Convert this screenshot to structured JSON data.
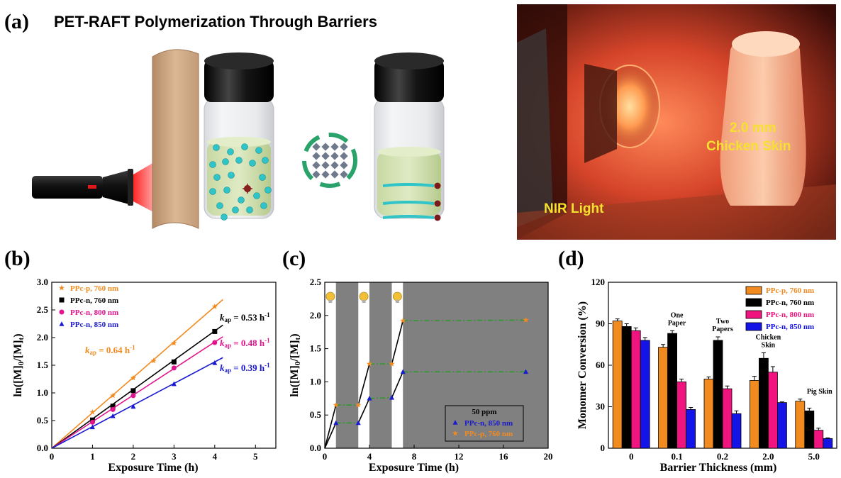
{
  "panel_a": {
    "letter": "(a)",
    "title": "PET-RAFT Polymerization Through Barriers",
    "photo_labels": {
      "thickness": "2.0 mm",
      "barrier": "Chicken Skin",
      "light": "NIR Light"
    },
    "colors": {
      "laser": "#e01818",
      "barrier": "#c9a27e",
      "solution": "#b7cf8a",
      "monomer": "#2ec4c8",
      "cage": "#6e7a8c",
      "arrow": "#2aa36a",
      "photo_glow": "#ff6a3c"
    }
  },
  "panel_b": {
    "letter": "(b)",
    "legend": [
      {
        "label": "PPc-p, 760 nm",
        "color": "#f28b1f",
        "marker": "star"
      },
      {
        "label": "PPc-n, 760 nm",
        "color": "#000000",
        "marker": "square"
      },
      {
        "label": "PPc-n, 800 nm",
        "color": "#e0148c",
        "marker": "circle"
      },
      {
        "label": "PPc-n, 850 nm",
        "color": "#1a1ad0",
        "marker": "triangle"
      }
    ],
    "annotations": {
      "k_symbol": "k",
      "k_sub": "ap",
      "k_unit_base": " h",
      "k_unit_exp": "-1",
      "values": [
        {
          "value": "0.64",
          "color": "#f28b1f"
        },
        {
          "value": "0.53",
          "color": "#000000"
        },
        {
          "value": "0.48",
          "color": "#e0148c"
        },
        {
          "value": "0.39",
          "color": "#1a1ad0"
        }
      ]
    }
  },
  "panel_c": {
    "letter": "(c)",
    "legend_title": "50 ppm",
    "legend": [
      {
        "label": "PPc-n, 850 nm",
        "color": "#1a1ad0",
        "marker": "triangle"
      },
      {
        "label": "PPc-p, 760 nm",
        "color": "#f28b1f",
        "marker": "star"
      }
    ],
    "colors": {
      "dark_band": "#808080",
      "plateau_line": "#2e9a2e",
      "bulb": "#f2c037"
    }
  },
  "panel_d": {
    "letter": "(d)",
    "legend": [
      {
        "label": "PPc-p, 760 nm",
        "color": "#f28b1f"
      },
      {
        "label": "PPc-n, 760 nm",
        "color": "#000000"
      },
      {
        "label": "PPc-n, 800 nm",
        "color": "#f0147e"
      },
      {
        "label": "PPc-n, 850 nm",
        "color": "#1414e6"
      }
    ],
    "group_labels": [
      {
        "lines": []
      },
      {
        "lines": [
          "One",
          "Paper"
        ]
      },
      {
        "lines": [
          "Two",
          "Papers"
        ]
      },
      {
        "lines": [
          "Chicken",
          "Skin"
        ]
      },
      {
        "lines": [
          "Pig Skin"
        ]
      }
    ]
  },
  "chart_data": [
    {
      "type": "scatter",
      "panel": "b",
      "xlabel": "Exposure Time (h)",
      "ylabel": "ln([M]0/[M]t)",
      "xlim": [
        0,
        5.5
      ],
      "ylim": [
        0,
        3.0
      ],
      "xticks": [
        "0",
        "1",
        "2",
        "3",
        "4",
        "5"
      ],
      "yticks": [
        "0.0",
        "0.5",
        "1.0",
        "1.5",
        "2.0",
        "2.5",
        "3.0"
      ],
      "series": [
        {
          "name": "PPc-p, 760 nm",
          "kap": 0.64,
          "fit_end_x": 4.2,
          "x": [
            0,
            1,
            1.5,
            2,
            2.5,
            3,
            4
          ],
          "y": [
            0,
            0.65,
            0.95,
            1.27,
            1.58,
            1.9,
            2.56
          ]
        },
        {
          "name": "PPc-n, 760 nm",
          "kap": 0.53,
          "fit_end_x": 4.2,
          "x": [
            0,
            1,
            1.5,
            2,
            3,
            4
          ],
          "y": [
            0,
            0.51,
            0.76,
            1.04,
            1.56,
            2.11
          ]
        },
        {
          "name": "PPc-n, 800 nm",
          "kap": 0.48,
          "fit_end_x": 4.2,
          "x": [
            0,
            1,
            1.5,
            2,
            3,
            4
          ],
          "y": [
            0,
            0.47,
            0.7,
            0.95,
            1.45,
            1.91
          ]
        },
        {
          "name": "PPc-n, 850 nm",
          "kap": 0.39,
          "fit_end_x": 4.2,
          "x": [
            0,
            1,
            1.5,
            2,
            3,
            4
          ],
          "y": [
            0,
            0.38,
            0.58,
            0.75,
            1.16,
            1.54
          ]
        }
      ],
      "legend_position": "top-left",
      "grid": false
    },
    {
      "type": "line",
      "panel": "c",
      "xlabel": "Exposure Time (h)",
      "ylabel": "ln([M]0/[M]t)",
      "xlim": [
        0,
        20
      ],
      "ylim": [
        0,
        2.5
      ],
      "xticks": [
        "0",
        "4",
        "8",
        "12",
        "16",
        "20"
      ],
      "yticks": [
        "0.0",
        "0.5",
        "1.0",
        "1.5",
        "2.0",
        "2.5"
      ],
      "dark_intervals": [
        [
          1,
          3
        ],
        [
          4,
          6
        ],
        [
          7,
          20
        ]
      ],
      "light_on_markers": [
        0.5,
        3.5,
        6.5
      ],
      "series": [
        {
          "name": "PPc-n, 850 nm",
          "x": [
            0,
            1,
            3,
            4,
            6,
            7,
            18
          ],
          "y": [
            0,
            0.38,
            0.38,
            0.75,
            0.76,
            1.15,
            1.15
          ]
        },
        {
          "name": "PPc-p, 760 nm",
          "x": [
            0,
            1,
            3,
            4,
            6,
            7,
            18
          ],
          "y": [
            0,
            0.65,
            0.65,
            1.27,
            1.27,
            1.92,
            1.93
          ]
        }
      ],
      "legend_position": "bottom-right",
      "grid": false
    },
    {
      "type": "bar",
      "panel": "d",
      "xlabel": "Barrier Thickness (mm)",
      "ylabel": "Monomer Conversion (%)",
      "ylim": [
        0,
        120
      ],
      "yticks": [
        "0",
        "30",
        "60",
        "90",
        "120"
      ],
      "categories": [
        "0",
        "0.1",
        "0.2",
        "2.0",
        "5.0"
      ],
      "series": [
        {
          "name": "PPc-p, 760 nm",
          "values": [
            92,
            73,
            50,
            49,
            34
          ],
          "errors": [
            1.5,
            2,
            1.5,
            3,
            1.5
          ]
        },
        {
          "name": "PPc-n, 760 nm",
          "values": [
            88,
            83,
            78,
            65,
            27
          ],
          "errors": [
            2,
            2,
            2.5,
            4,
            2
          ]
        },
        {
          "name": "PPc-n, 800 nm",
          "values": [
            85,
            48,
            43,
            55,
            13
          ],
          "errors": [
            2,
            2,
            2,
            4,
            1.5
          ]
        },
        {
          "name": "PPc-n, 850 nm",
          "values": [
            78,
            28,
            25,
            33,
            7
          ],
          "errors": [
            2,
            1.5,
            2,
            0.5,
            0.5
          ]
        }
      ],
      "legend_position": "top-right",
      "grid": false
    }
  ]
}
